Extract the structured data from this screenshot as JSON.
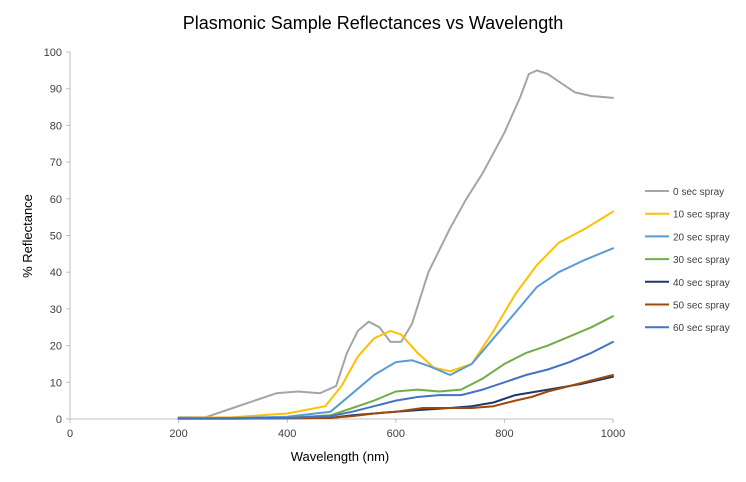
{
  "chart_data": {
    "type": "line",
    "title": "Plasmonic Sample Reflectances vs Wavelength",
    "xlabel": "Wavelength (nm)",
    "ylabel": "% Reflectance",
    "xlim": [
      0,
      1000
    ],
    "ylim": [
      0,
      100
    ],
    "x_ticks": [
      0,
      200,
      400,
      600,
      800,
      1000
    ],
    "y_ticks": [
      0,
      10,
      20,
      30,
      40,
      50,
      60,
      70,
      80,
      90,
      100
    ],
    "grid": false,
    "legend_position": "right",
    "series": [
      {
        "name": "0 sec spray",
        "color": "#a5a5a5",
        "x": [
          200,
          250,
          300,
          350,
          380,
          420,
          460,
          490,
          510,
          530,
          550,
          570,
          590,
          610,
          630,
          660,
          700,
          730,
          760,
          800,
          830,
          845,
          860,
          880,
          900,
          930,
          960,
          1000
        ],
        "y": [
          0.5,
          0.5,
          3,
          5.5,
          7,
          7.5,
          7,
          9,
          18,
          24,
          26.5,
          25,
          21,
          21,
          26,
          40,
          52,
          60,
          67,
          78,
          88,
          94,
          95,
          94,
          92,
          89,
          88,
          87.5
        ]
      },
      {
        "name": "10 sec spray",
        "color": "#ffc000",
        "x": [
          200,
          300,
          400,
          470,
          500,
          530,
          560,
          590,
          610,
          640,
          670,
          700,
          740,
          780,
          820,
          860,
          900,
          950,
          1000
        ],
        "y": [
          0.3,
          0.5,
          1.5,
          3.5,
          9,
          17,
          22,
          24,
          23,
          18,
          14,
          13,
          15,
          24,
          34,
          42,
          48,
          52,
          56.5
        ]
      },
      {
        "name": "20 sec spray",
        "color": "#5b9bd5",
        "x": [
          200,
          300,
          400,
          480,
          520,
          560,
          600,
          630,
          660,
          700,
          740,
          780,
          820,
          860,
          900,
          950,
          1000
        ],
        "y": [
          0.2,
          0.3,
          0.6,
          2,
          7,
          12,
          15.5,
          16,
          14.5,
          12,
          15,
          22,
          29,
          36,
          40,
          43.5,
          46.5
        ]
      },
      {
        "name": "30 sec spray",
        "color": "#70ad47",
        "x": [
          200,
          300,
          400,
          480,
          520,
          560,
          600,
          640,
          680,
          720,
          760,
          800,
          840,
          880,
          920,
          960,
          1000
        ],
        "y": [
          0.2,
          0.2,
          0.3,
          1,
          3,
          5,
          7.5,
          8,
          7.5,
          8,
          11,
          15,
          18,
          20,
          22.5,
          25,
          28
        ]
      },
      {
        "name": "40 sec spray",
        "color": "#203864",
        "x": [
          200,
          300,
          400,
          480,
          520,
          560,
          600,
          650,
          700,
          740,
          780,
          820,
          860,
          900,
          940,
          1000
        ],
        "y": [
          0.1,
          0.1,
          0.2,
          0.3,
          1,
          1.5,
          2,
          2.5,
          3,
          3.5,
          4.5,
          6.5,
          7.5,
          8.5,
          9.5,
          11.5
        ]
      },
      {
        "name": "50 sec spray",
        "color": "#9e480e",
        "x": [
          200,
          300,
          400,
          480,
          520,
          560,
          600,
          650,
          700,
          740,
          780,
          820,
          850,
          880,
          920,
          960,
          1000
        ],
        "y": [
          0.1,
          0.1,
          0.2,
          0.3,
          0.8,
          1.5,
          2,
          3,
          3,
          3,
          3.5,
          5,
          6,
          7.5,
          9,
          10.5,
          12
        ]
      },
      {
        "name": "60 sec spray",
        "color": "#4472c4",
        "x": [
          200,
          300,
          400,
          480,
          520,
          560,
          600,
          640,
          680,
          720,
          760,
          800,
          840,
          880,
          920,
          960,
          1000
        ],
        "y": [
          0.1,
          0.2,
          0.3,
          0.8,
          2,
          3.5,
          5,
          6,
          6.5,
          6.5,
          8,
          10,
          12,
          13.5,
          15.5,
          18,
          21
        ]
      }
    ]
  }
}
